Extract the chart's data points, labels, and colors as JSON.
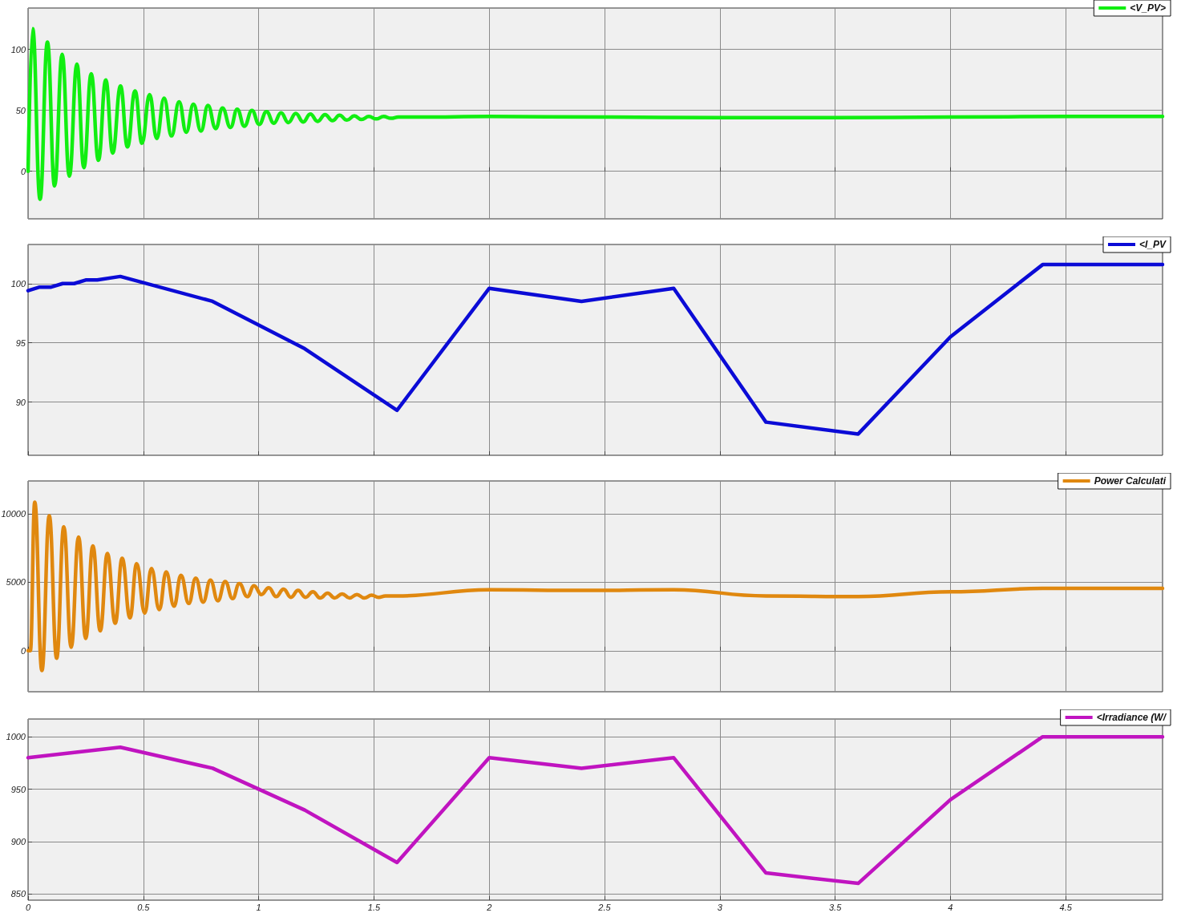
{
  "chart_data": [
    {
      "type": "line",
      "x": [
        0,
        0.02,
        0.052,
        0.084,
        0.115,
        0.148,
        0.179,
        0.212,
        0.242,
        0.274,
        0.305,
        0.337,
        0.367,
        0.401,
        0.431,
        0.464,
        0.494,
        0.527,
        0.558,
        0.59,
        0.622,
        0.655,
        0.686,
        0.717,
        0.75,
        0.78,
        0.814,
        0.843,
        0.878,
        0.907,
        0.938,
        0.971,
        1.002,
        1.034,
        1.066,
        1.097,
        1.129,
        1.161,
        1.193,
        1.224,
        1.256,
        1.288,
        1.32,
        1.351,
        1.383,
        1.415,
        1.446,
        1.478,
        1.51,
        1.542,
        1.574,
        1.606,
        1.7,
        2,
        2.5,
        3,
        3.5,
        4,
        4.5,
        4.92
      ],
      "series": [
        {
          "name": "<V_PV>",
          "color": "#11ee11",
          "values": [
            0,
            117,
            -23,
            106,
            -12,
            96,
            -4,
            88,
            3,
            80,
            9,
            75,
            15,
            70,
            20,
            66,
            23,
            63,
            27,
            60,
            29,
            57,
            32,
            55,
            33,
            54,
            35,
            52,
            36,
            51,
            37,
            50,
            38.5,
            49,
            39.5,
            48,
            40,
            47.5,
            40.5,
            47,
            41,
            46.5,
            41.5,
            46,
            42,
            45.5,
            42.5,
            45,
            43,
            45,
            43.5,
            44.5,
            44.5,
            45,
            44.5,
            44,
            44,
            44.5,
            45,
            45
          ]
        }
      ],
      "xlim": [
        0,
        4.92
      ],
      "xticks": [
        0,
        0.5,
        1,
        1.5,
        2,
        2.5,
        3,
        3.5,
        4,
        4.5
      ],
      "ylim": [
        -39,
        134
      ],
      "yticks": [
        0,
        50,
        100
      ],
      "grid": true,
      "legend": "top right",
      "tick_labels": "y",
      "marker": "none",
      "line_style": "solid"
    },
    {
      "type": "line",
      "x": [
        0,
        0.05,
        0.1,
        0.15,
        0.2,
        0.25,
        0.3,
        0.4,
        0.8,
        1.2,
        1.6,
        2,
        2.4,
        2.8,
        3.2,
        3.6,
        4,
        4.4,
        4.92
      ],
      "series": [
        {
          "name": "<I_PV",
          "color": "#0b0bd6",
          "values": [
            99.4,
            99.7,
            99.7,
            100,
            100,
            100.3,
            100.3,
            100.6,
            98.5,
            94.5,
            89.3,
            99.6,
            98.5,
            99.6,
            88.3,
            87.3,
            95.5,
            101.6,
            101.6
          ]
        }
      ],
      "xlim": [
        0,
        4.92
      ],
      "xticks": [
        0,
        0.5,
        1,
        1.5,
        2,
        2.5,
        3,
        3.5,
        4,
        4.5
      ],
      "ylim": [
        85.5,
        103.3
      ],
      "yticks": [
        90,
        95,
        100
      ],
      "grid": true,
      "legend": "top right",
      "tick_labels": "y",
      "marker": "none",
      "line_style": "solid"
    },
    {
      "type": "line",
      "x": [
        0,
        0.01,
        0.029,
        0.06,
        0.092,
        0.124,
        0.155,
        0.187,
        0.219,
        0.25,
        0.281,
        0.313,
        0.344,
        0.378,
        0.408,
        0.442,
        0.471,
        0.506,
        0.535,
        0.569,
        0.599,
        0.633,
        0.663,
        0.697,
        0.727,
        0.759,
        0.791,
        0.823,
        0.855,
        0.887,
        0.916,
        0.951,
        0.98,
        1.012,
        1.044,
        1.076,
        1.108,
        1.14,
        1.171,
        1.203,
        1.235,
        1.267,
        1.299,
        1.33,
        1.362,
        1.394,
        1.426,
        1.458,
        1.49,
        1.52,
        1.55,
        1.6,
        2,
        2.4,
        2.8,
        3.2,
        3.6,
        4,
        4.4,
        4.92
      ],
      "series": [
        {
          "name": "Power Calculati",
          "color": "#e0880f",
          "values": [
            0,
            0,
            10850,
            -1450,
            9850,
            -550,
            9050,
            250,
            8300,
            900,
            7650,
            1450,
            7100,
            2000,
            6750,
            2400,
            6350,
            2750,
            6000,
            3000,
            5750,
            3250,
            5500,
            3450,
            5300,
            3550,
            5150,
            3650,
            5050,
            3800,
            4900,
            3950,
            4750,
            4100,
            4600,
            3950,
            4500,
            3900,
            4400,
            3900,
            4300,
            3850,
            4200,
            3850,
            4150,
            3850,
            4100,
            3850,
            4050,
            3900,
            4000,
            4000,
            4450,
            4400,
            4450,
            4000,
            3950,
            4300,
            4550,
            4550
          ]
        }
      ],
      "xlim": [
        0,
        4.92
      ],
      "xticks": [
        0,
        0.5,
        1,
        1.5,
        2,
        2.5,
        3,
        3.5,
        4,
        4.5
      ],
      "ylim": [
        -3000,
        12400
      ],
      "yticks": [
        0,
        5000,
        10000
      ],
      "grid": true,
      "legend": "top right",
      "tick_labels": "y",
      "marker": "none",
      "line_style": "solid"
    },
    {
      "type": "line",
      "x": [
        0,
        0.4,
        0.8,
        1.2,
        1.6,
        2,
        2.4,
        2.8,
        3.2,
        3.6,
        4,
        4.4,
        4.92
      ],
      "series": [
        {
          "name": "<Irradiance (W/",
          "color": "#c014c0",
          "values": [
            980,
            990,
            970,
            930,
            880,
            980,
            970,
            980,
            870,
            860,
            940,
            1000,
            1000
          ]
        }
      ],
      "xlim": [
        0,
        4.92
      ],
      "xticks": [
        0,
        0.5,
        1,
        1.5,
        2,
        2.5,
        3,
        3.5,
        4,
        4.5
      ],
      "ylim": [
        844,
        1017
      ],
      "yticks": [
        850,
        900,
        950,
        1000
      ],
      "grid": true,
      "legend": "top right",
      "marker": "none",
      "line_style": "solid"
    }
  ]
}
